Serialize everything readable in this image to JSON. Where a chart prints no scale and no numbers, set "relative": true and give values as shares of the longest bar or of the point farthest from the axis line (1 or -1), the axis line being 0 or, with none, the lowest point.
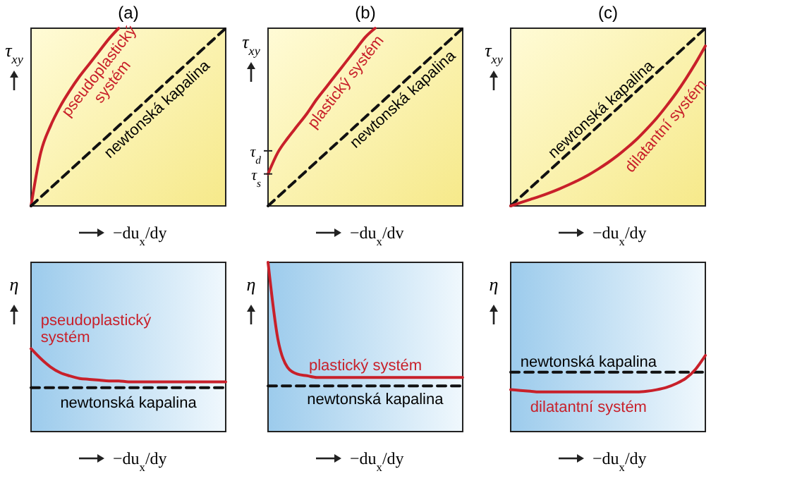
{
  "chart_data": [
    {
      "type": "line",
      "title": "(a)",
      "xlabel": "−du$_{x}$/dy",
      "ylabel": "τ$_{xy}$",
      "relative": true,
      "categories": [
        null,
        null,
        null,
        null,
        null,
        null,
        null,
        null,
        null,
        null,
        null,
        null,
        null,
        null,
        null,
        null,
        null,
        null,
        null,
        null,
        null
      ],
      "series": [
        {
          "name": "pseudoplastický systém",
          "color": "#c8202a",
          "line_style": "solid",
          "values": [
            0,
            0.3,
            0.45,
            0.56,
            0.65,
            0.73,
            0.8,
            0.87,
            0.94,
            1,
            null,
            null,
            null,
            null,
            null,
            null,
            null,
            null,
            null,
            null,
            null
          ]
        },
        {
          "name": "newtonská kapalina",
          "color": "#111111",
          "line_style": "dashed",
          "values": [
            0,
            0.05,
            0.1,
            0.15,
            0.2,
            0.25,
            0.3,
            0.35,
            0.4,
            0.45,
            0.5,
            0.55,
            0.6,
            0.65,
            0.7,
            0.75,
            0.8,
            0.85,
            0.9,
            0.95,
            1
          ]
        }
      ]
    },
    {
      "type": "line",
      "title": "(b)",
      "xlabel": "−du$_{x}$/dv",
      "ylabel": "τ$_{xy}$",
      "relative": true,
      "categories": [
        null,
        null,
        null,
        null,
        null,
        null,
        null,
        null,
        null,
        null,
        null,
        null,
        null,
        null,
        null,
        null,
        null,
        null,
        null,
        null,
        null
      ],
      "ref_lines": [
        {
          "axis": "y",
          "value": 0.31,
          "label": "τ$_{d}$"
        },
        {
          "axis": "y",
          "value": 0.18,
          "label": "τ$_{s}$"
        }
      ],
      "series": [
        {
          "name": "plastický systém",
          "color": "#c8202a",
          "line_style": "solid",
          "values": [
            0.18,
            0.3,
            0.38,
            0.45,
            0.52,
            0.6,
            0.67,
            0.74,
            0.81,
            0.88,
            0.95,
            1,
            null,
            null,
            null,
            null,
            null,
            null,
            null,
            null,
            null
          ]
        },
        {
          "name": "newtonská kapalina",
          "color": "#111111",
          "line_style": "dashed",
          "values": [
            0,
            0.05,
            0.1,
            0.15,
            0.2,
            0.25,
            0.3,
            0.35,
            0.4,
            0.45,
            0.5,
            0.55,
            0.6,
            0.65,
            0.7,
            0.75,
            0.8,
            0.85,
            0.9,
            0.95,
            1
          ]
        }
      ]
    },
    {
      "type": "line",
      "title": "(c)",
      "xlabel": "−du$_{x}$/dy",
      "ylabel": "τ$_{xy}$",
      "relative": true,
      "categories": [
        null,
        null,
        null,
        null,
        null,
        null,
        null,
        null,
        null,
        null,
        null,
        null,
        null,
        null,
        null,
        null,
        null,
        null,
        null,
        null,
        null
      ],
      "series": [
        {
          "name": "newtonská kapalina",
          "color": "#111111",
          "line_style": "dashed",
          "values": [
            0,
            0.05,
            0.1,
            0.15,
            0.2,
            0.25,
            0.3,
            0.35,
            0.4,
            0.45,
            0.5,
            0.55,
            0.6,
            0.65,
            0.7,
            0.75,
            0.8,
            0.85,
            0.9,
            0.95,
            1
          ]
        },
        {
          "name": "dilatantní systém",
          "color": "#c8202a",
          "line_style": "solid",
          "values": [
            0,
            0.018,
            0.036,
            0.054,
            0.074,
            0.096,
            0.12,
            0.146,
            0.175,
            0.208,
            0.244,
            0.284,
            0.329,
            0.378,
            0.434,
            0.494,
            0.562,
            0.635,
            0.716,
            0.804,
            0.9
          ]
        }
      ]
    },
    {
      "type": "line",
      "xlabel": "−du$_{x}$/dy",
      "ylabel": "η",
      "relative": true,
      "categories": [
        null,
        null,
        null,
        null,
        null,
        null,
        null,
        null,
        null,
        null,
        null,
        null,
        null,
        null,
        null,
        null,
        null,
        null,
        null,
        null,
        null
      ],
      "series": [
        {
          "name": "pseudoplastický systém",
          "color": "#c8202a",
          "line_style": "solid",
          "values": [
            1,
            0.88,
            0.78,
            0.71,
            0.67,
            0.64,
            0.63,
            0.62,
            0.61,
            0.61,
            0.6,
            0.6,
            0.6,
            0.6,
            0.6,
            0.6,
            0.6,
            0.6,
            0.6,
            0.6,
            0.6
          ]
        },
        {
          "name": "newtonská kapalina",
          "color": "#111111",
          "line_style": "dashed",
          "values": [
            0.53,
            0.53,
            0.53,
            0.53,
            0.53,
            0.53,
            0.53,
            0.53,
            0.53,
            0.53,
            0.53,
            0.53,
            0.53,
            0.53,
            0.53,
            0.53,
            0.53,
            0.53,
            0.53,
            0.53,
            0.53
          ]
        }
      ]
    },
    {
      "type": "line",
      "xlabel": "−du$_{x}$/dy",
      "ylabel": "η",
      "relative": true,
      "categories": [
        null,
        null,
        null,
        null,
        null,
        null,
        null,
        null,
        null,
        null,
        null,
        null,
        null,
        null,
        null,
        null,
        null,
        null,
        null,
        null,
        null
      ],
      "series": [
        {
          "name": "plastický systém",
          "color": "#c8202a",
          "line_style": "solid",
          "values": [
            1,
            0.55,
            0.38,
            0.34,
            0.33,
            0.32,
            0.32,
            0.32,
            0.32,
            0.32,
            0.32,
            0.32,
            0.32,
            0.32,
            0.32,
            0.32,
            0.32,
            0.32,
            0.32,
            0.32,
            0.32
          ]
        },
        {
          "name": "newtonská kapalina",
          "color": "#111111",
          "line_style": "dashed",
          "values": [
            0.27,
            0.27,
            0.27,
            0.27,
            0.27,
            0.27,
            0.27,
            0.27,
            0.27,
            0.27,
            0.27,
            0.27,
            0.27,
            0.27,
            0.27,
            0.27,
            0.27,
            0.27,
            0.27,
            0.27,
            0.27
          ]
        }
      ]
    },
    {
      "type": "line",
      "xlabel": "−du$_{x}$/dy",
      "ylabel": "η",
      "relative": true,
      "categories": [
        null,
        null,
        null,
        null,
        null,
        null,
        null,
        null,
        null,
        null,
        null,
        null,
        null,
        null,
        null,
        null,
        null,
        null,
        null,
        null,
        null
      ],
      "series": [
        {
          "name": "newtonská kapalina",
          "color": "#111111",
          "line_style": "dashed",
          "values": [
            0.78,
            0.78,
            0.78,
            0.78,
            0.78,
            0.78,
            0.78,
            0.78,
            0.78,
            0.78,
            0.78,
            0.78,
            0.78,
            0.78,
            0.78,
            0.78,
            0.78,
            0.78,
            0.78,
            0.78,
            0.78
          ]
        },
        {
          "name": "dilatantní systém",
          "color": "#c8202a",
          "line_style": "solid",
          "values": [
            0.55,
            0.54,
            0.53,
            0.52,
            0.52,
            0.52,
            0.52,
            0.52,
            0.52,
            0.52,
            0.52,
            0.52,
            0.52,
            0.52,
            0.53,
            0.55,
            0.58,
            0.63,
            0.7,
            0.82,
            1
          ]
        }
      ]
    }
  ]
}
